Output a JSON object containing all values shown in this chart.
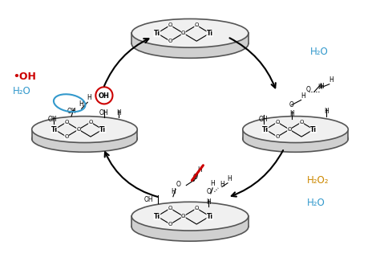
{
  "figsize": [
    4.74,
    3.41
  ],
  "dpi": 100,
  "bg_color": "#ffffff",
  "disc_color": "#d0d0d0",
  "disc_edge_color": "#555555",
  "disc_top_color": "#f0f0f0",
  "labels": {
    "H2O_top_right": "H₂O",
    "H2O2_right": "H₂O₂",
    "H2O_right_bottom": "H₂O",
    "OH_radical": "•OH",
    "H2O_left": "H₂O"
  },
  "colors": {
    "black": "#000000",
    "red": "#cc0000",
    "blue": "#3399cc",
    "gold": "#cc8800",
    "circle_red": "#cc0000",
    "circle_blue": "#3399cc"
  }
}
